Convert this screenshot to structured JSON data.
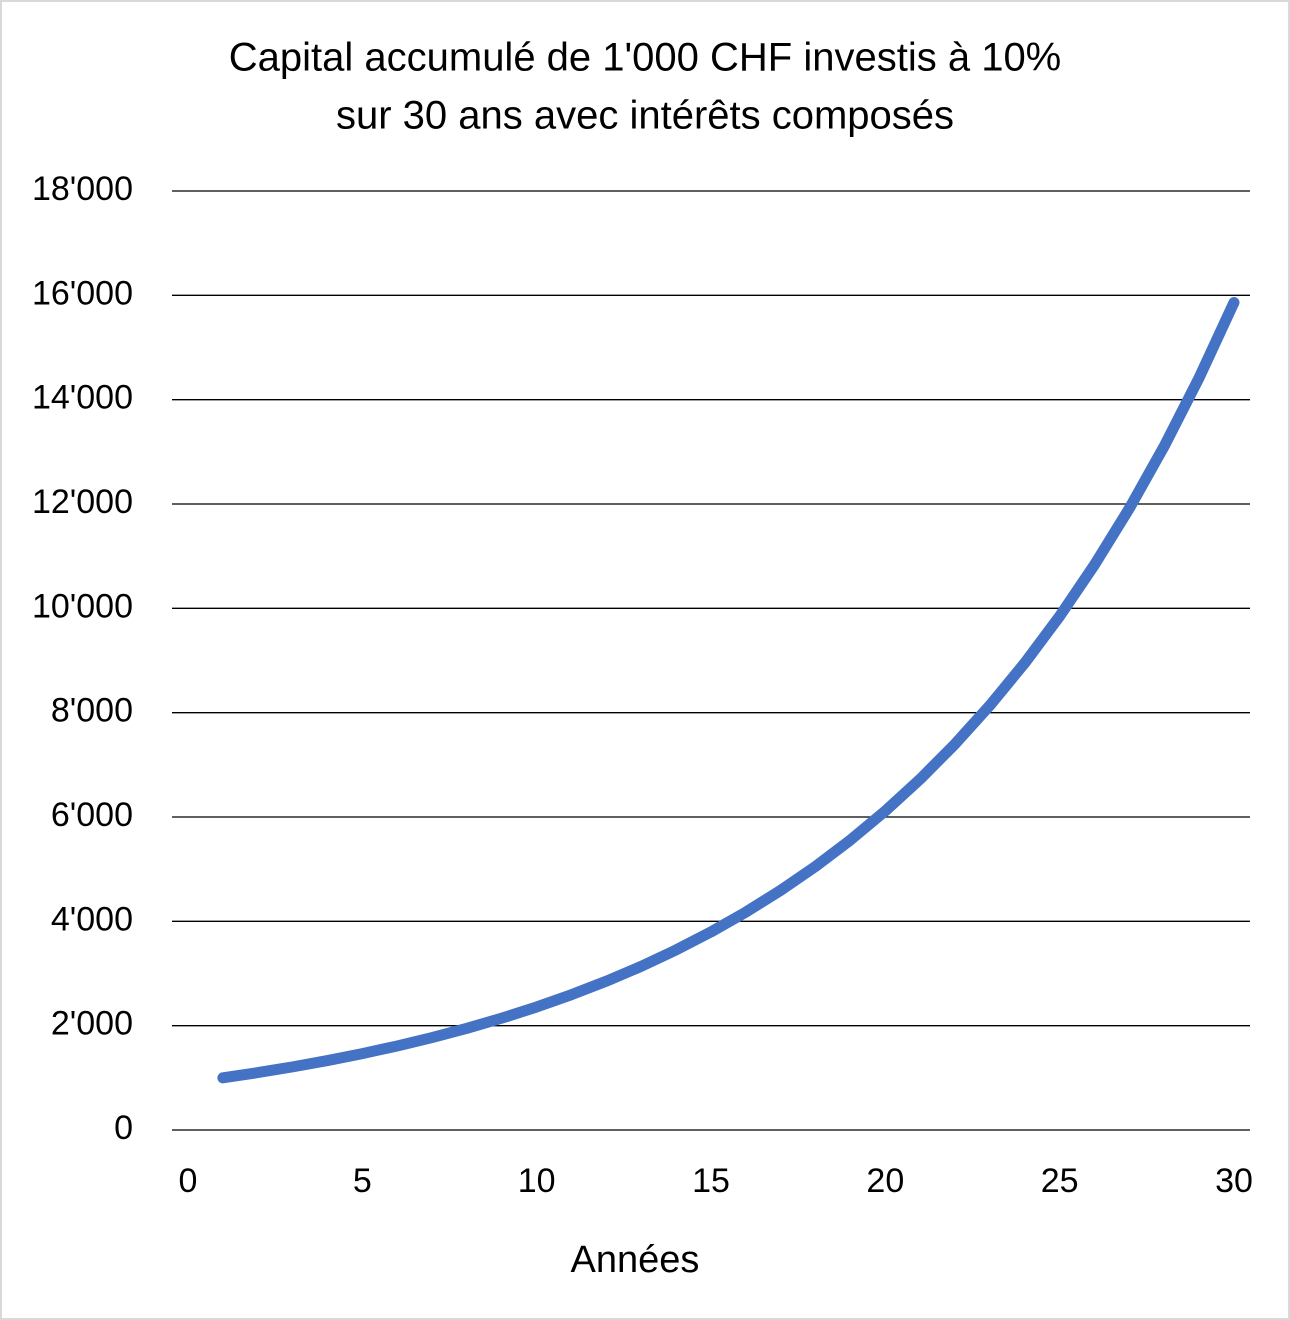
{
  "chart_data": {
    "type": "line",
    "title": [
      "Capital accumulé de 1'000 CHF investis à 10%",
      "sur 30 ans avec intérêts composés"
    ],
    "x_label": "Années",
    "x": [
      1,
      2,
      3,
      4,
      5,
      6,
      7,
      8,
      9,
      10,
      11,
      12,
      13,
      14,
      15,
      16,
      17,
      18,
      19,
      20,
      21,
      22,
      23,
      24,
      25,
      26,
      27,
      28,
      29,
      30
    ],
    "series": [
      {
        "color": "#4472c4",
        "values": [
          1000,
          1100,
          1210,
          1331,
          1464,
          1611,
          1772,
          1949,
          2144,
          2358,
          2594,
          2853,
          3138,
          3452,
          3797,
          4177,
          4595,
          5054,
          5560,
          6116,
          6727,
          7400,
          8140,
          8954,
          9850,
          10835,
          11918,
          13110,
          14421,
          15863
        ]
      }
    ],
    "xlim": [
      0,
      30
    ],
    "xticks": [
      0,
      5,
      10,
      15,
      20,
      25,
      30
    ],
    "ylim": [
      0,
      18000
    ],
    "yticks": [
      0,
      {
        "value": 2000,
        "label": "2'000"
      },
      {
        "value": 4000,
        "label": "4'000"
      },
      {
        "value": 6000,
        "label": "6'000"
      },
      {
        "value": 8000,
        "label": "8'000"
      },
      {
        "value": 10000,
        "label": "10'000"
      },
      {
        "value": 12000,
        "label": "12'000"
      },
      {
        "value": 14000,
        "label": "14'000"
      },
      {
        "value": 16000,
        "label": "16'000"
      },
      {
        "value": 18000,
        "label": "18'000"
      }
    ],
    "grid": true
  }
}
